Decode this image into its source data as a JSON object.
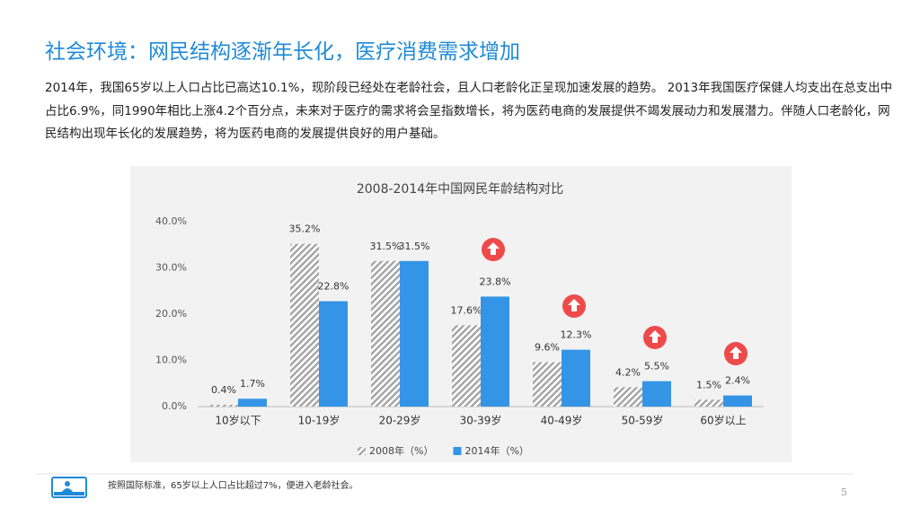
{
  "header": {
    "title": "社会环境：网民结构逐渐年长化，医疗消费需求增加"
  },
  "paragraph": "2014年，我国65岁以上人口占比已高达10.1%，现阶段已经处在老龄社会，且人口老龄化正呈现加速发展的趋势。 2013年我国医疗保健人均支出在总支出中占比6.9%，同1990年相比上涨4.2个百分点，未来对于医疗的需求将会呈指数增长，将为医药电商的发展提供不竭发展动力和发展潜力。伴随人口老龄化，网民结构出现年长化的发展趋势，将为医药电商的发展提供良好的用户基础。",
  "chart_data": {
    "type": "bar",
    "title": "2008-2014年中国网民年龄结构对比",
    "categories": [
      "10岁以下",
      "10-19岁",
      "20-29岁",
      "30-39岁",
      "40-49岁",
      "50-59岁",
      "60岁以上"
    ],
    "series": [
      {
        "name": "2008年（%）",
        "color": "#a6a6a6",
        "values": [
          0.4,
          35.2,
          31.5,
          17.6,
          9.6,
          4.2,
          1.5
        ],
        "value_labels": [
          "0.4%",
          "35.2%",
          "31.5%",
          "17.6%",
          "9.6%",
          "4.2%",
          "1.5%"
        ]
      },
      {
        "name": "2014年（%）",
        "color": "#3494e6",
        "values": [
          1.7,
          22.8,
          31.5,
          23.8,
          12.3,
          5.5,
          2.4
        ],
        "value_labels": [
          "1.7%",
          "22.8%",
          "31.5%",
          "23.8%",
          "12.3%",
          "5.5%",
          "2.4%"
        ]
      }
    ],
    "ylim": [
      0,
      40
    ],
    "yticks": [
      {
        "value": 0,
        "label": "0.0%"
      },
      {
        "value": 10,
        "label": "10.0%"
      },
      {
        "value": 20,
        "label": "20.0%"
      },
      {
        "value": 30,
        "label": "30.0%"
      },
      {
        "value": 40,
        "label": "40.0%"
      }
    ],
    "grid": false
  },
  "footnote": "按照国际标准，65岁以上人口占比超过7%，便进入老龄社会。",
  "page_number": "5"
}
